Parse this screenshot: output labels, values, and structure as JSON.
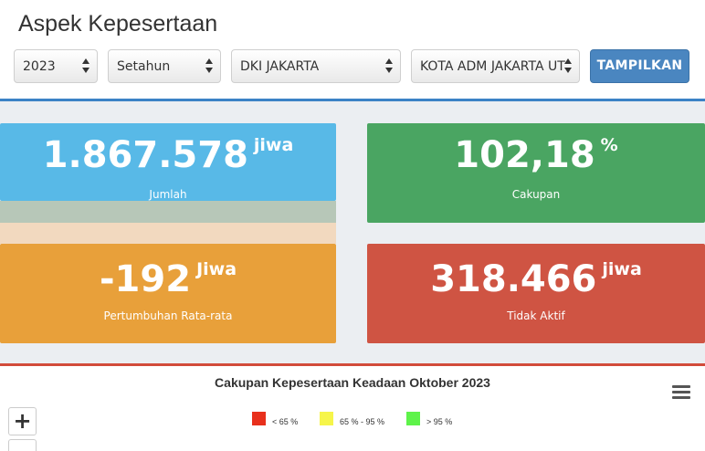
{
  "page": {
    "title": "Aspek Kepesertaan"
  },
  "filters": {
    "year": "2023",
    "period": "Setahun",
    "province": "DKI JAKARTA",
    "city": "KOTA ADM JAKARTA UT",
    "submit_label": "TAMPILKAN"
  },
  "stats": {
    "jumlah": {
      "value": "1.867.578",
      "unit": "jiwa",
      "label": "Jumlah",
      "color": "#58b9e7"
    },
    "cakupan": {
      "value": "102,18",
      "unit": "%",
      "label": "Cakupan",
      "color": "#4aa562"
    },
    "pertumbuhan": {
      "value": "-192",
      "unit": "Jiwa",
      "label": "Pertumbuhan Rata-rata",
      "color": "#e8a03a"
    },
    "tidak_aktif": {
      "value": "318.466",
      "unit": "jiwa",
      "label": "Tidak Aktif",
      "color": "#cf5443"
    }
  },
  "chart": {
    "title": "Cakupan Kepesertaan Keadaan Oktober 2023",
    "legend": [
      {
        "label": "< 65 %",
        "color": "#e8301c"
      },
      {
        "label": "65 % - 95 %",
        "color": "#f6f54a"
      },
      {
        "label": "> 95 %",
        "color": "#5ef34a"
      }
    ],
    "zoom_in": "+",
    "zoom_out": "−"
  },
  "icons": {
    "menu": "hamburger-menu-icon",
    "select_arrows": "chevron-updown-icon"
  }
}
